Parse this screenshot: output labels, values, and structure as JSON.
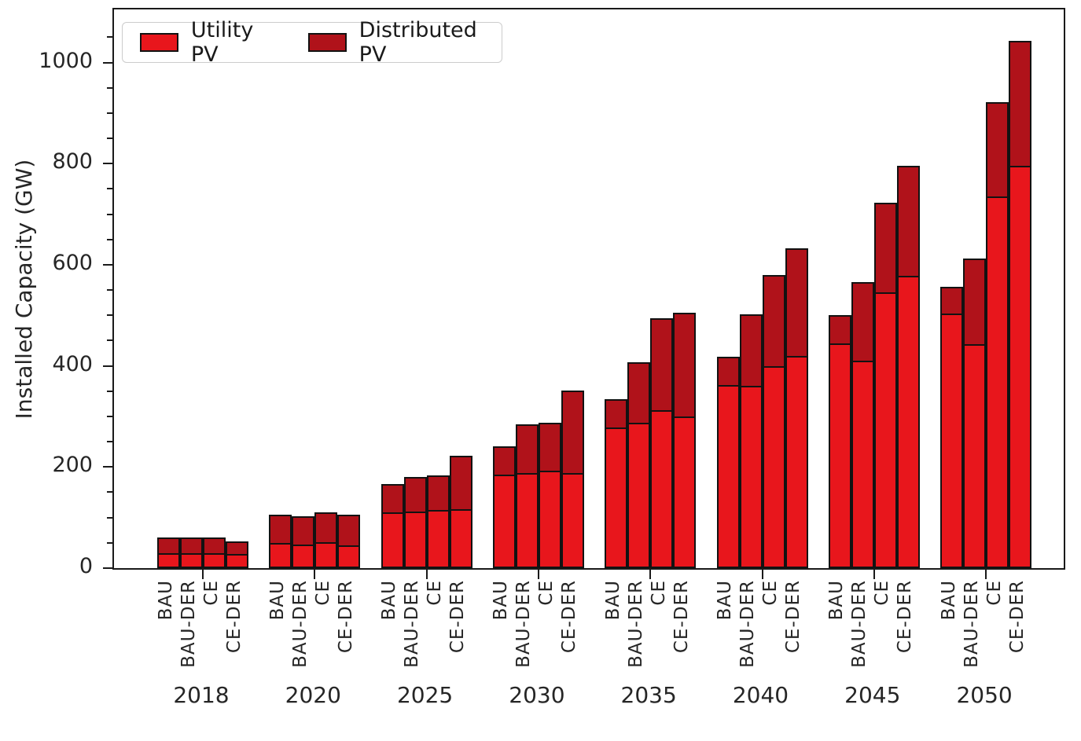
{
  "chart_data": {
    "type": "bar",
    "stacked": true,
    "title": "",
    "ylabel": "Installed Capacity (GW)",
    "ylim": [
      0,
      1105
    ],
    "yticks": [
      0,
      200,
      400,
      600,
      800,
      1000
    ],
    "minor_tick_interval": 50,
    "grid": false,
    "legend_position": "upper left",
    "group_categories": [
      "2018",
      "2020",
      "2025",
      "2030",
      "2035",
      "2040",
      "2045",
      "2050"
    ],
    "bar_categories": [
      "BAU",
      "BAU-DER",
      "CE",
      "CE-DER"
    ],
    "series": [
      {
        "name": "Utility PV",
        "color": "#e8161c",
        "values": [
          [
            30,
            30,
            30,
            28
          ],
          [
            50,
            46,
            52,
            45
          ],
          [
            110,
            112,
            115,
            116
          ],
          [
            185,
            188,
            192,
            188
          ],
          [
            278,
            288,
            312,
            300
          ],
          [
            362,
            360,
            400,
            420
          ],
          [
            444,
            410,
            545,
            578
          ],
          [
            503,
            443,
            735,
            796
          ]
        ]
      },
      {
        "name": "Distributed PV",
        "color": "#b0121a",
        "values": [
          [
            30,
            30,
            30,
            25
          ],
          [
            55,
            57,
            58,
            61
          ],
          [
            56,
            69,
            69,
            106
          ],
          [
            56,
            96,
            96,
            163
          ],
          [
            56,
            119,
            182,
            205
          ],
          [
            56,
            142,
            180,
            213
          ],
          [
            56,
            155,
            178,
            218
          ],
          [
            54,
            169,
            187,
            247
          ]
        ]
      }
    ]
  },
  "legend": {
    "utility_label": "Utility PV",
    "distributed_label": "Distributed PV"
  },
  "axis": {
    "y_label": "Installed Capacity (GW)"
  },
  "colors": {
    "utility_pv": "#e8161c",
    "distributed_pv": "#b0121a",
    "bar_outline": "#121212",
    "axis": "#1a1a1a"
  }
}
